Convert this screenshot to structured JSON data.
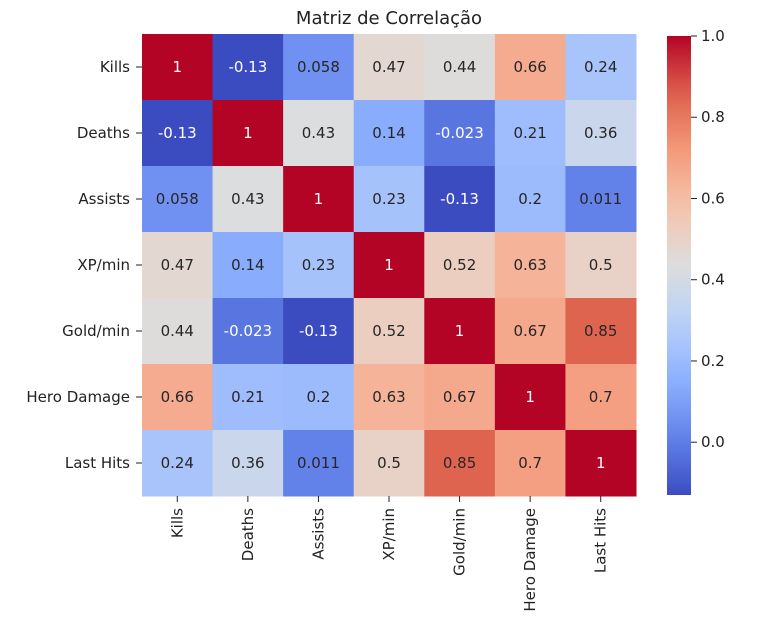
{
  "chart_data": {
    "type": "heatmap",
    "title": "Matriz de Correlação",
    "xlabel": "",
    "ylabel": "",
    "x_categories": [
      "Kills",
      "Deaths",
      "Assists",
      "XP/min",
      "Gold/min",
      "Hero Damage",
      "Last Hits"
    ],
    "y_categories": [
      "Kills",
      "Deaths",
      "Assists",
      "XP/min",
      "Gold/min",
      "Hero Damage",
      "Last Hits"
    ],
    "values": [
      [
        1,
        -0.13,
        0.058,
        0.47,
        0.44,
        0.66,
        0.24
      ],
      [
        -0.13,
        1,
        0.43,
        0.14,
        -0.023,
        0.21,
        0.36
      ],
      [
        0.058,
        0.43,
        1,
        0.23,
        -0.13,
        0.2,
        0.011
      ],
      [
        0.47,
        0.14,
        0.23,
        1,
        0.52,
        0.63,
        0.5
      ],
      [
        0.44,
        -0.023,
        -0.13,
        0.52,
        1,
        0.67,
        0.85
      ],
      [
        0.66,
        0.21,
        0.2,
        0.63,
        0.67,
        1,
        0.7
      ],
      [
        0.24,
        0.36,
        0.011,
        0.5,
        0.85,
        0.7,
        1
      ]
    ],
    "cell_labels": [
      [
        "1",
        "-0.13",
        "0.058",
        "0.47",
        "0.44",
        "0.66",
        "0.24"
      ],
      [
        "-0.13",
        "1",
        "0.43",
        "0.14",
        "-0.023",
        "0.21",
        "0.36"
      ],
      [
        "0.058",
        "0.43",
        "1",
        "0.23",
        "-0.13",
        "0.2",
        "0.011"
      ],
      [
        "0.47",
        "0.14",
        "0.23",
        "1",
        "0.52",
        "0.63",
        "0.5"
      ],
      [
        "0.44",
        "-0.023",
        "-0.13",
        "0.52",
        "1",
        "0.67",
        "0.85"
      ],
      [
        "0.66",
        "0.21",
        "0.2",
        "0.63",
        "0.67",
        "1",
        "0.7"
      ],
      [
        "0.24",
        "0.36",
        "0.011",
        "0.5",
        "0.85",
        "0.7",
        "1"
      ]
    ],
    "colormap": "coolwarm",
    "colorbar": {
      "vmin": -0.13,
      "vmax": 1.0,
      "ticks": [
        0.0,
        0.2,
        0.4,
        0.6,
        0.8,
        1.0
      ],
      "tick_labels": [
        "0.0",
        "0.2",
        "0.4",
        "0.6",
        "0.8",
        "1.0"
      ]
    },
    "grid": false,
    "legend": "colorbar-right"
  }
}
